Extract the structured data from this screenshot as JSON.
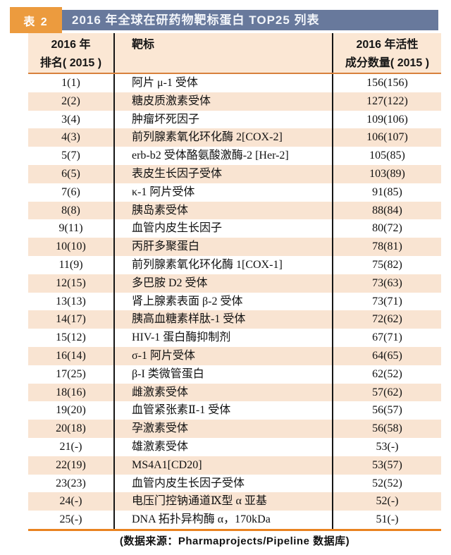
{
  "header": {
    "label": "表 2",
    "title": "2016 年全球在研药物靶标蛋白 TOP25 列表"
  },
  "columns": {
    "rank_line1": "2016 年",
    "rank_line2": "排名( 2015 )",
    "target": "靶标",
    "count_line1": "2016 年活性",
    "count_line2": "成分数量( 2015 )"
  },
  "rows": [
    {
      "rank": "1(1)",
      "target": "阿片 μ-1 受体",
      "count": "156(156)"
    },
    {
      "rank": "2(2)",
      "target": "糖皮质激素受体",
      "count": "127(122)"
    },
    {
      "rank": "3(4)",
      "target": "肿瘤坏死因子",
      "count": "109(106)"
    },
    {
      "rank": "4(3)",
      "target": "前列腺素氧化环化酶 2[COX-2]",
      "count": "106(107)"
    },
    {
      "rank": "5(7)",
      "target": "erb-b2 受体酪氨酸激酶-2 [Her-2]",
      "count": "105(85)"
    },
    {
      "rank": "6(5)",
      "target": "表皮生长因子受体",
      "count": "103(89)"
    },
    {
      "rank": "7(6)",
      "target": "κ-1 阿片受体",
      "count": "91(85)"
    },
    {
      "rank": "8(8)",
      "target": "胰岛素受体",
      "count": "88(84)"
    },
    {
      "rank": "9(11)",
      "target": "血管内皮生长因子",
      "count": "80(72)"
    },
    {
      "rank": "10(10)",
      "target": "丙肝多聚蛋白",
      "count": "78(81)"
    },
    {
      "rank": "11(9)",
      "target": "前列腺素氧化环化酶 1[COX-1]",
      "count": "75(82)"
    },
    {
      "rank": "12(15)",
      "target": "多巴胺 D2 受体",
      "count": "73(63)"
    },
    {
      "rank": "13(13)",
      "target": "肾上腺素表面 β-2 受体",
      "count": "73(71)"
    },
    {
      "rank": "14(17)",
      "target": "胰高血糖素样肽-1 受体",
      "count": "72(62)"
    },
    {
      "rank": "15(12)",
      "target": "HIV-1 蛋白酶抑制剂",
      "count": "67(71)"
    },
    {
      "rank": "16(14)",
      "target": "σ-1 阿片受体",
      "count": "64(65)"
    },
    {
      "rank": "17(25)",
      "target": "β-I 类微管蛋白",
      "count": "62(52)"
    },
    {
      "rank": "18(16)",
      "target": "雌激素受体",
      "count": "57(62)"
    },
    {
      "rank": "19(20)",
      "target": "血管紧张素Ⅱ-1 受体",
      "count": "56(57)"
    },
    {
      "rank": "20(18)",
      "target": "孕激素受体",
      "count": "56(58)"
    },
    {
      "rank": "21(-)",
      "target": "雄激素受体",
      "count": "53(-)"
    },
    {
      "rank": "22(19)",
      "target": "MS4A1[CD20]",
      "count": "53(57)"
    },
    {
      "rank": "23(23)",
      "target": "血管内皮生长因子受体",
      "count": "52(52)"
    },
    {
      "rank": "24(-)",
      "target": "电压门控钠通道Ⅸ型 α 亚基",
      "count": "52(-)"
    },
    {
      "rank": "25(-)",
      "target": "DNA 拓扑异构酶 α，170kDa",
      "count": "51(-)"
    }
  ],
  "footer": "(数据来源：Pharmaprojects/Pipeline 数据库)",
  "colors": {
    "accent_orange": "#EC9B3E",
    "title_bar_blue": "#68799C",
    "header_bg_peach": "#FBE7D4",
    "stripe_peach": "#F9E4D2",
    "header_rule_orange": "#D8813C",
    "bottom_rule_orange": "#E98320",
    "column_rule_black": "#151515",
    "title_text": "#F2F5FA"
  }
}
